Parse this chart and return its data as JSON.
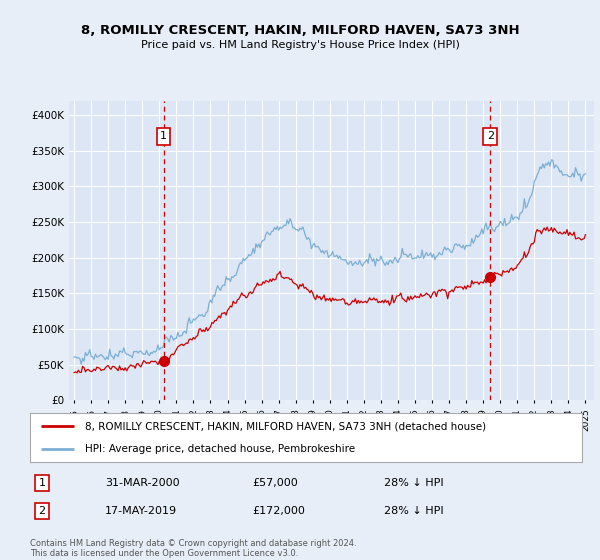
{
  "title": "8, ROMILLY CRESCENT, HAKIN, MILFORD HAVEN, SA73 3NH",
  "subtitle": "Price paid vs. HM Land Registry's House Price Index (HPI)",
  "legend_line1": "8, ROMILLY CRESCENT, HAKIN, MILFORD HAVEN, SA73 3NH (detached house)",
  "legend_line2": "HPI: Average price, detached house, Pembrokeshire",
  "marker1_date": "31-MAR-2000",
  "marker1_price": 57000,
  "marker1_label": "28% ↓ HPI",
  "marker1_year": 2000.25,
  "marker2_date": "17-MAY-2019",
  "marker2_price": 172000,
  "marker2_label": "28% ↓ HPI",
  "marker2_year": 2019.42,
  "footer": "Contains HM Land Registry data © Crown copyright and database right 2024.\nThis data is licensed under the Open Government Licence v3.0.",
  "background_color": "#e8eef8",
  "plot_bg_color": "#dce6f5",
  "red_line_color": "#cc0000",
  "blue_line_color": "#7bafd4",
  "grid_color": "#ffffff",
  "dashed_line_color": "#cc0000",
  "ylim": [
    0,
    420000
  ],
  "yticks": [
    0,
    50000,
    100000,
    150000,
    200000,
    250000,
    300000,
    350000,
    400000
  ],
  "xlim_start": 1994.7,
  "xlim_end": 2025.5,
  "xtick_years": [
    1995,
    1996,
    1997,
    1998,
    1999,
    2000,
    2001,
    2002,
    2003,
    2004,
    2005,
    2006,
    2007,
    2008,
    2009,
    2010,
    2011,
    2012,
    2013,
    2014,
    2015,
    2016,
    2017,
    2018,
    2019,
    2020,
    2021,
    2022,
    2023,
    2024,
    2025
  ]
}
